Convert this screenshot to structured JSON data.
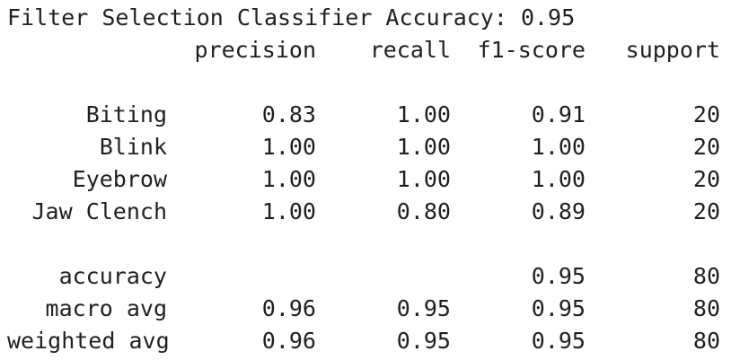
{
  "title": "Filter Selection Classifier Accuracy: 0.95",
  "headers": {
    "precision": "precision",
    "recall": "recall",
    "f1": "f1-score",
    "support": "support"
  },
  "class_rows": [
    {
      "label": "Biting",
      "precision": "0.83",
      "recall": "1.00",
      "f1": "0.91",
      "support": "20"
    },
    {
      "label": "Blink",
      "precision": "1.00",
      "recall": "1.00",
      "f1": "1.00",
      "support": "20"
    },
    {
      "label": "Eyebrow",
      "precision": "1.00",
      "recall": "1.00",
      "f1": "1.00",
      "support": "20"
    },
    {
      "label": "Jaw Clench",
      "precision": "1.00",
      "recall": "0.80",
      "f1": "0.89",
      "support": "20"
    }
  ],
  "summary_rows": [
    {
      "label": "accuracy",
      "precision": "",
      "recall": "",
      "f1": "0.95",
      "support": "80"
    },
    {
      "label": "macro avg",
      "precision": "0.96",
      "recall": "0.95",
      "f1": "0.95",
      "support": "80"
    },
    {
      "label": "weighted avg",
      "precision": "0.96",
      "recall": "0.95",
      "f1": "0.95",
      "support": "80"
    }
  ]
}
